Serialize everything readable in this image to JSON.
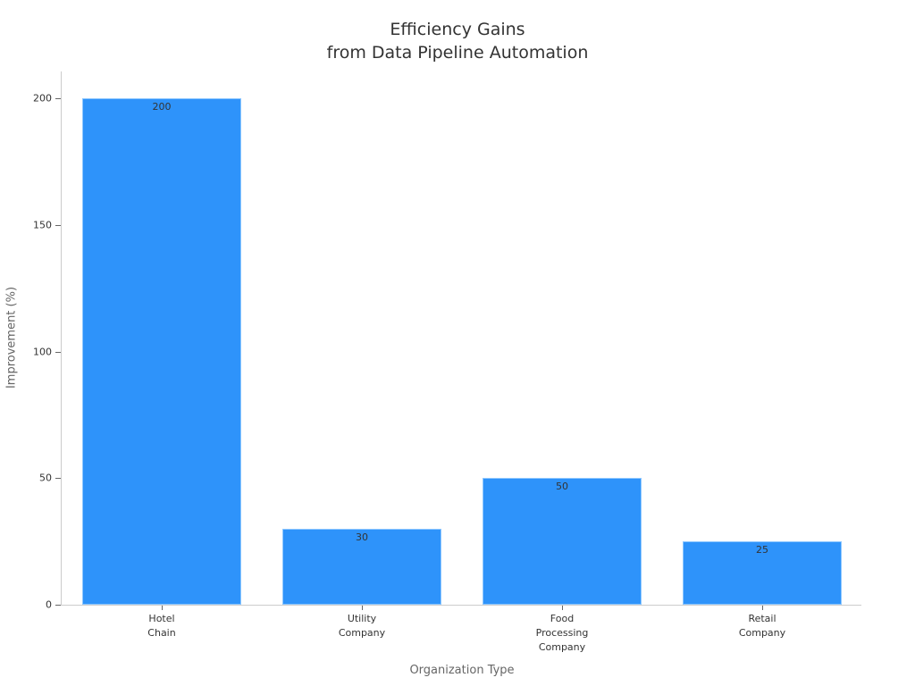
{
  "chart_data": {
    "type": "bar",
    "title": "Efficiency Gains\nfrom Data Pipeline Automation",
    "title_lines": [
      "Efficiency Gains",
      "from Data Pipeline Automation"
    ],
    "xlabel": "Organization Type",
    "ylabel": "Improvement (%)",
    "categories": [
      "Hotel\nChain",
      "Utility\nCompany",
      "Food\nProcessing\nCompany",
      "Retail\nCompany"
    ],
    "values": [
      200,
      30,
      50,
      25
    ],
    "data_labels": [
      "200",
      "30",
      "50",
      "25"
    ],
    "yticks": [
      "0",
      "50",
      "100",
      "150",
      "200"
    ],
    "ylim": [
      0,
      210
    ],
    "grid": false,
    "legend": null,
    "bar_color": "#2e93fa"
  }
}
